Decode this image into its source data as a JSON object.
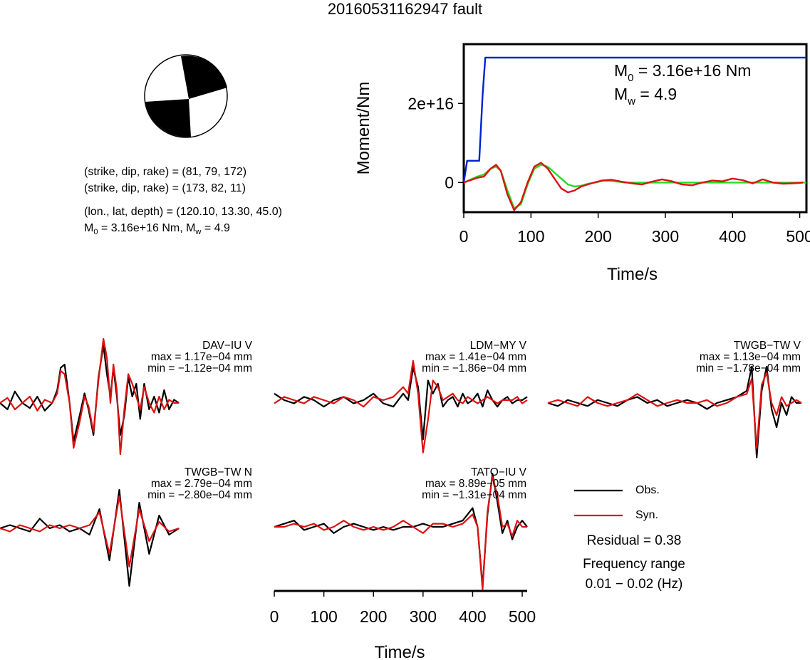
{
  "title": "20160531162947 fault",
  "mechanism": {
    "line1": "(strike, dip, rake) = (81, 79, 172)",
    "line2": "(strike, dip, rake) = (173, 82, 11)",
    "line3": "(lon., lat, depth) = (120.10, 13.30, 45.0)",
    "line4_pre": "M",
    "line4_sub": "0",
    "line4_mid": " = 3.16e+16 Nm, M",
    "line4_sub2": "w",
    "line4_post": " = 4.9"
  },
  "moment_panel": {
    "m0_pre": "M",
    "m0_sub": "0",
    "m0_post": " = 3.16e+16 Nm",
    "mw_pre": "M",
    "mw_sub": "w",
    "mw_post": " = 4.9"
  },
  "legend": {
    "obs": "Obs.",
    "syn": "Syn.",
    "residual": "Residual = 0.38",
    "freq_title": "Frequency range",
    "freq_value": "0.01 − 0.02 (Hz)"
  },
  "stations": [
    {
      "name": "DAV−IU V",
      "max": "max = 1.17e−04 mm",
      "min": "min = −1.12e−04 mm"
    },
    {
      "name": "LDM−MY V",
      "max": "max = 1.41e−04 mm",
      "min": "min = −1.86e−04 mm"
    },
    {
      "name": "TWGB−TW V",
      "max": "max = 1.13e−04 mm",
      "min": "min = −1.78e−04 mm"
    },
    {
      "name": "TWGB−TW N",
      "max": "max = 2.79e−04 mm",
      "min": "min = −2.80e−04 mm"
    },
    {
      "name": "TATO−IU V",
      "max": "max = 8.89e−05 mm",
      "min": "min = −1.31e−04 mm"
    }
  ],
  "chart_data": [
    {
      "type": "line",
      "id": "moment",
      "xlabel": "Time/s",
      "ylabel": "Moment/Nm",
      "xlim": [
        0,
        510
      ],
      "ylim": [
        -7500000000000000.0,
        3.5e+16
      ],
      "xticks": [
        0,
        100,
        200,
        300,
        400,
        500
      ],
      "xtick_labels": [
        "0",
        "100",
        "200",
        "300",
        "400",
        "500"
      ],
      "yticks": [
        0,
        2e+16
      ],
      "ytick_labels": [
        "0",
        "2e+16"
      ],
      "series": [
        {
          "color": "#0022cc",
          "x": [
            0,
            5,
            18,
            23,
            28,
            32,
            510
          ],
          "y": [
            0,
            5500000000000000.0,
            5500000000000000.0,
            5500000000000000.0,
            2.2e+16,
            3.16e+16,
            3.16e+16
          ]
        },
        {
          "color": "#22dd22",
          "x": [
            0,
            20,
            30,
            40,
            48,
            55,
            65,
            75,
            85,
            95,
            105,
            115,
            125,
            135,
            145,
            155,
            165,
            175,
            185,
            195,
            210,
            225,
            240,
            260,
            280,
            510
          ],
          "y": [
            0,
            1500000000000000.0,
            2000000000000000.0,
            3500000000000000.0,
            4000000000000000.0,
            3000000000000000.0,
            -2000000000000000.0,
            -6500000000000000.0,
            -5500000000000000.0,
            -500000000000000.0,
            3500000000000000.0,
            4500000000000000.0,
            4000000000000000.0,
            2500000000000000.0,
            1000000000000000.0,
            -500000000000000.0,
            -1000000000000000.0,
            -800000000000000.0,
            -300000000000000.0,
            0.0,
            500000000000000.0,
            300000000000000.0,
            0.0,
            0.0,
            0.0,
            0.0
          ]
        },
        {
          "color": "#dd1111",
          "x": [
            0,
            20,
            30,
            40,
            48,
            55,
            65,
            75,
            85,
            95,
            105,
            115,
            125,
            135,
            145,
            155,
            165,
            175,
            190,
            205,
            220,
            235,
            250,
            265,
            280,
            295,
            310,
            325,
            340,
            355,
            370,
            385,
            400,
            415,
            430,
            445,
            460,
            475,
            490,
            505
          ],
          "y": [
            0,
            1200000000000000.0,
            1500000000000000.0,
            3500000000000000.0,
            4500000000000000.0,
            3000000000000000.0,
            -3000000000000000.0,
            -7000000000000000.0,
            -5000000000000000.0,
            0.0,
            4000000000000000.0,
            5000000000000000.0,
            3500000000000000.0,
            1000000000000000.0,
            -1500000000000000.0,
            -2500000000000000.0,
            -2000000000000000.0,
            -1000000000000000.0,
            -200000000000000.0,
            500000000000000.0,
            700000000000000.0,
            200000000000000.0,
            -200000000000000.0,
            -500000000000000.0,
            200000000000000.0,
            800000000000000.0,
            300000000000000.0,
            -500000000000000.0,
            -700000000000000.0,
            0.0,
            500000000000000.0,
            300000000000000.0,
            1000000000000000.0,
            600000000000000.0,
            -200000000000000.0,
            800000000000000.0,
            0.0,
            -300000000000000.0,
            -200000000000000.0,
            0.0
          ]
        }
      ]
    },
    {
      "type": "line",
      "id": "waveforms",
      "xlabel": "Time/s",
      "xlim": [
        0,
        510
      ],
      "xticks": [
        0,
        100,
        200,
        300,
        400,
        500
      ],
      "xtick_labels": [
        "0",
        "100",
        "200",
        "300",
        "400",
        "500"
      ],
      "ylim": [
        -1,
        1
      ],
      "series_colors": {
        "obs": "#000000",
        "syn": "#dd1111"
      },
      "traces": [
        {
          "station": "DAV−IU V",
          "obs": {
            "t": [
              0,
              15,
              30,
              45,
              60,
              75,
              90,
              105,
              115,
              122,
              130,
              140,
              148,
              160,
              170,
              178,
              188,
              198,
              208,
              215,
              222,
              228,
              235,
              242,
              250,
              258,
              266,
              274,
              282,
              290,
              300,
              310,
              320,
              330,
              340,
              350,
              360
            ],
            "v": [
              0.0,
              -0.1,
              0.18,
              0.0,
              -0.08,
              0.1,
              -0.12,
              0.0,
              0.2,
              0.55,
              0.6,
              0.0,
              -0.6,
              -0.2,
              0.15,
              -0.1,
              -0.5,
              0.4,
              0.9,
              0.45,
              0.1,
              0.55,
              0.1,
              -0.5,
              -0.2,
              0.4,
              0.1,
              0.3,
              -0.25,
              0.3,
              -0.1,
              0.1,
              -0.15,
              0.2,
              -0.1,
              0.05,
              0.0
            ]
          },
          "syn": {
            "t": [
              0,
              15,
              30,
              45,
              60,
              75,
              90,
              105,
              115,
              122,
              130,
              140,
              148,
              160,
              170,
              178,
              188,
              198,
              208,
              215,
              222,
              228,
              235,
              242,
              250,
              258,
              266,
              274,
              282,
              290,
              300,
              310,
              320,
              330,
              340,
              350,
              360
            ],
            "v": [
              0.0,
              0.08,
              -0.1,
              0.0,
              0.1,
              -0.12,
              0.05,
              0.0,
              0.15,
              0.5,
              0.45,
              0.0,
              -0.7,
              -0.3,
              0.1,
              -0.05,
              -0.45,
              0.35,
              1.0,
              0.7,
              0.0,
              0.6,
              0.2,
              -0.8,
              -0.1,
              0.45,
              0.3,
              0.1,
              -0.1,
              0.25,
              0.0,
              -0.15,
              0.1,
              -0.1,
              0.05,
              0.0,
              0.0
            ]
          }
        },
        {
          "station": "LDM−MY V",
          "obs": {
            "t": [
              0,
              20,
              40,
              60,
              80,
              100,
              120,
              140,
              160,
              180,
              200,
              220,
              240,
              260,
              270,
              280,
              290,
              300,
              310,
              320,
              330,
              340,
              350,
              360,
              370,
              380,
              390,
              400,
              410,
              420,
              430,
              440,
              450,
              460,
              470,
              480,
              490,
              500,
              510
            ],
            "v": [
              0.1,
              0.0,
              -0.05,
              0.05,
              0.0,
              -0.1,
              0.0,
              0.05,
              -0.05,
              0.0,
              0.1,
              -0.05,
              -0.1,
              0.1,
              0.0,
              0.5,
              0.2,
              -0.6,
              0.3,
              0.1,
              0.25,
              -0.1,
              0.0,
              0.05,
              -0.1,
              0.1,
              -0.05,
              0.0,
              0.1,
              -0.1,
              0.15,
              0.0,
              -0.1,
              0.0,
              0.05,
              -0.05,
              0.0,
              0.0,
              0.05
            ]
          },
          "syn": {
            "t": [
              0,
              20,
              40,
              60,
              80,
              100,
              120,
              140,
              160,
              180,
              200,
              220,
              240,
              260,
              270,
              280,
              290,
              300,
              310,
              320,
              330,
              340,
              350,
              360,
              370,
              380,
              390,
              400,
              410,
              420,
              430,
              440,
              450,
              460,
              470,
              480,
              490,
              500,
              510
            ],
            "v": [
              -0.05,
              0.05,
              0.0,
              -0.05,
              0.05,
              0.0,
              -0.05,
              0.05,
              0.0,
              -0.1,
              0.05,
              0.0,
              0.05,
              0.2,
              0.1,
              0.6,
              0.1,
              -0.8,
              -0.3,
              0.3,
              0.2,
              0.0,
              0.05,
              0.1,
              0.0,
              -0.05,
              0.05,
              0.0,
              -0.05,
              0.0,
              0.05,
              0.0,
              -0.05,
              0.0,
              0.0,
              0.0,
              0.05,
              -0.05,
              0.0
            ]
          }
        },
        {
          "station": "TWGB−TW V",
          "obs": {
            "t": [
              0,
              20,
              40,
              60,
              80,
              100,
              120,
              140,
              160,
              180,
              200,
              220,
              240,
              260,
              280,
              300,
              320,
              340,
              360,
              380,
              400,
              410,
              420,
              430,
              440,
              450,
              460,
              470,
              480,
              490,
              500,
              510
            ],
            "v": [
              0.0,
              -0.05,
              0.05,
              0.0,
              -0.05,
              0.05,
              0.0,
              -0.05,
              0.05,
              0.1,
              0.0,
              0.05,
              -0.05,
              0.0,
              0.05,
              0.0,
              -0.1,
              0.0,
              0.05,
              0.1,
              0.2,
              0.6,
              -0.9,
              0.2,
              0.6,
              -0.1,
              -0.4,
              0.0,
              -0.2,
              0.1,
              0.0,
              0.0
            ]
          },
          "syn": {
            "t": [
              0,
              20,
              40,
              60,
              80,
              100,
              120,
              140,
              160,
              180,
              200,
              220,
              240,
              260,
              280,
              300,
              320,
              340,
              360,
              380,
              400,
              410,
              420,
              430,
              440,
              450,
              460,
              470,
              480,
              490,
              500,
              510
            ],
            "v": [
              0.0,
              0.05,
              0.0,
              -0.05,
              0.1,
              0.0,
              -0.05,
              0.0,
              0.05,
              0.15,
              0.05,
              -0.05,
              0.0,
              0.05,
              0.0,
              0.0,
              0.05,
              -0.05,
              0.0,
              0.1,
              0.15,
              0.4,
              -0.75,
              0.3,
              0.5,
              0.0,
              -0.2,
              0.1,
              -0.05,
              0.0,
              0.05,
              0.0
            ]
          }
        },
        {
          "station": "TWGB−TW N",
          "obs": {
            "t": [
              0,
              20,
              40,
              60,
              80,
              100,
              120,
              140,
              160,
              180,
              200,
              220,
              240,
              260,
              280,
              300,
              320,
              340,
              360
            ],
            "v": [
              0.0,
              0.05,
              0.0,
              -0.05,
              0.15,
              0.0,
              0.05,
              -0.05,
              0.0,
              -0.1,
              0.3,
              -0.5,
              0.6,
              -0.9,
              0.4,
              -0.4,
              0.2,
              -0.1,
              0.0
            ]
          },
          "syn": {
            "t": [
              0,
              20,
              40,
              60,
              80,
              100,
              120,
              140,
              160,
              180,
              200,
              220,
              240,
              260,
              280,
              300,
              320,
              340,
              360
            ],
            "v": [
              0.0,
              -0.05,
              0.05,
              0.0,
              -0.05,
              0.05,
              0.0,
              0.05,
              0.0,
              0.05,
              0.25,
              -0.4,
              0.5,
              -0.6,
              0.3,
              -0.2,
              0.1,
              -0.05,
              0.0
            ]
          }
        },
        {
          "station": "TATO−IU V",
          "obs": {
            "t": [
              0,
              20,
              40,
              60,
              80,
              100,
              120,
              140,
              160,
              180,
              200,
              220,
              240,
              260,
              280,
              300,
              320,
              340,
              360,
              380,
              400,
              410,
              420,
              430,
              440,
              450,
              460,
              470,
              480,
              490,
              500,
              510
            ],
            "v": [
              0.0,
              0.05,
              0.1,
              -0.05,
              0.0,
              0.05,
              -0.1,
              0.0,
              0.05,
              0.0,
              -0.05,
              0.0,
              -0.05,
              0.0,
              0.0,
              0.05,
              0.0,
              0.0,
              0.05,
              0.1,
              0.3,
              0.0,
              -0.95,
              0.2,
              0.85,
              0.4,
              -0.1,
              0.1,
              -0.2,
              0.0,
              0.1,
              0.0
            ]
          },
          "syn": {
            "t": [
              0,
              20,
              40,
              60,
              80,
              100,
              120,
              140,
              160,
              180,
              200,
              220,
              240,
              260,
              280,
              300,
              320,
              340,
              360,
              380,
              400,
              410,
              420,
              430,
              440,
              450,
              460,
              470,
              480,
              490,
              500,
              510
            ],
            "v": [
              0.0,
              0.0,
              0.05,
              0.0,
              0.05,
              -0.05,
              0.0,
              0.1,
              0.0,
              -0.05,
              0.0,
              -0.05,
              0.0,
              0.1,
              0.0,
              -0.1,
              0.05,
              0.05,
              0.0,
              0.05,
              0.2,
              0.0,
              -1.0,
              0.25,
              0.8,
              0.5,
              0.0,
              0.05,
              -0.15,
              0.1,
              0.0,
              0.0
            ]
          }
        }
      ]
    }
  ]
}
